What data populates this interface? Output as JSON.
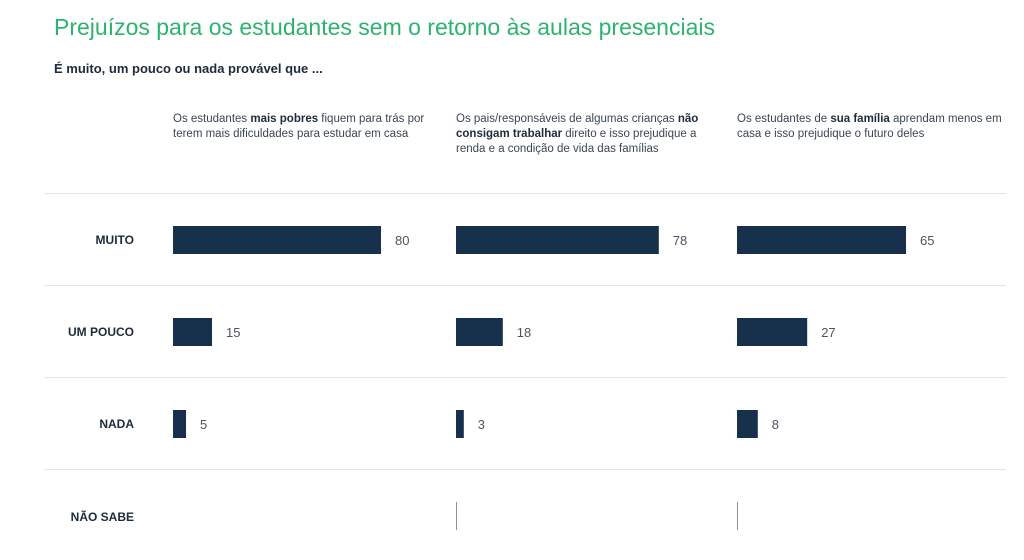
{
  "title": "Prejuízos para os estudantes sem o retorno às aulas presenciais",
  "subtitle": "É muito, um pouco ou nada provável que ...",
  "colors": {
    "title": "#2db36f",
    "bar": "#17304b",
    "value_text": "#4a5561"
  },
  "chart_data": {
    "type": "bar",
    "orientation": "horizontal",
    "title": "Prejuízos para os estudantes sem o retorno às aulas presenciais",
    "subtitle": "É muito, um pouco ou nada provável que ...",
    "categories": [
      "MUITO",
      "UM POUCO",
      "NADA",
      "NÃO SABE"
    ],
    "xlim": [
      0,
      100
    ],
    "grid": false,
    "panels": [
      {
        "pre": "Os estudantes ",
        "bold": "mais pobres",
        "post": " fiquem para trás por terem mais dificuldades para estudar em casa",
        "values": [
          80,
          15,
          5,
          null
        ]
      },
      {
        "pre": "Os pais/responsáveis de algumas crianças ",
        "bold": "não consigam trabalhar",
        "post": " direito e isso prejudique a renda e a condição de vida das famílias",
        "values": [
          78,
          18,
          3,
          0
        ]
      },
      {
        "pre": "Os estudantes de ",
        "bold": "sua família",
        "post": "  aprendam menos em casa e isso prejudique o futuro deles",
        "values": [
          65,
          27,
          8,
          0
        ]
      }
    ]
  }
}
